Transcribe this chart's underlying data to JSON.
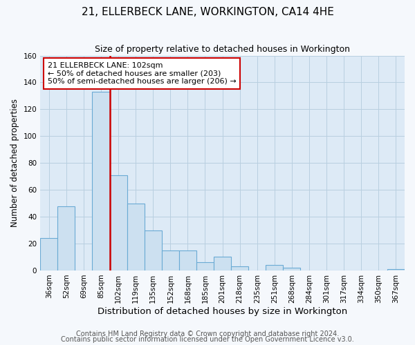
{
  "title": "21, ELLERBECK LANE, WORKINGTON, CA14 4HE",
  "subtitle": "Size of property relative to detached houses in Workington",
  "xlabel": "Distribution of detached houses by size in Workington",
  "ylabel": "Number of detached properties",
  "bar_labels": [
    "36sqm",
    "52sqm",
    "69sqm",
    "85sqm",
    "102sqm",
    "119sqm",
    "135sqm",
    "152sqm",
    "168sqm",
    "185sqm",
    "201sqm",
    "218sqm",
    "235sqm",
    "251sqm",
    "268sqm",
    "284sqm",
    "301sqm",
    "317sqm",
    "334sqm",
    "350sqm",
    "367sqm"
  ],
  "bar_values": [
    24,
    48,
    0,
    133,
    71,
    50,
    30,
    15,
    15,
    6,
    10,
    3,
    0,
    4,
    2,
    0,
    0,
    0,
    0,
    0,
    1
  ],
  "bar_color": "#cce0f0",
  "bar_edge_color": "#6aaad4",
  "vline_x_position": 3.5,
  "vline_color": "#cc0000",
  "ylim": [
    0,
    160
  ],
  "annotation_box_text": "21 ELLERBECK LANE: 102sqm\n← 50% of detached houses are smaller (203)\n50% of semi-detached houses are larger (206) →",
  "footer_line1": "Contains HM Land Registry data © Crown copyright and database right 2024.",
  "footer_line2": "Contains public sector information licensed under the Open Government Licence v3.0.",
  "figure_bg_color": "#f5f8fc",
  "plot_bg_color": "#ddeaf6",
  "grid_color": "#b8cfe0",
  "title_fontsize": 11,
  "subtitle_fontsize": 9,
  "xlabel_fontsize": 9.5,
  "ylabel_fontsize": 8.5,
  "tick_fontsize": 7.5,
  "footer_fontsize": 7,
  "annotation_fontsize": 8
}
